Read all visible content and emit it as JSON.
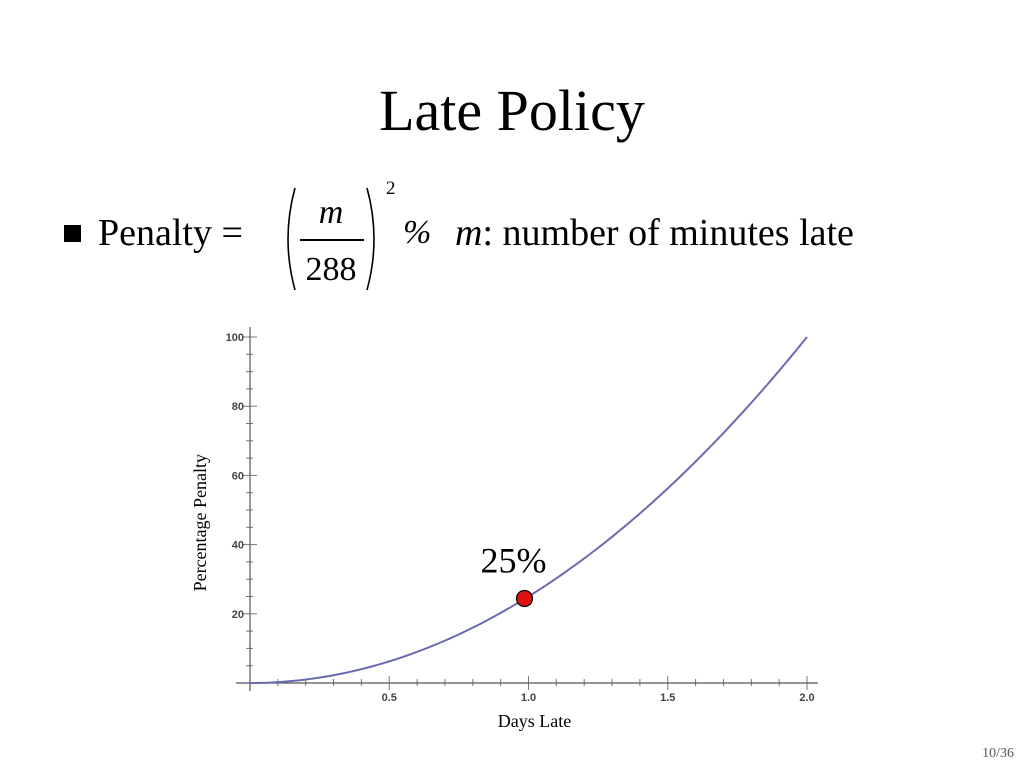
{
  "slide": {
    "title": "Late Policy",
    "page_number": "10/36"
  },
  "bullet": {
    "label": "Penalty =",
    "numerator": "m",
    "denominator": "288",
    "exponent": "2",
    "percent": "%",
    "var_name": "m",
    "description": ": number of minutes late"
  },
  "chart_data": {
    "type": "line",
    "title": "",
    "xlabel": "Days Late",
    "ylabel": "Percentage Penalty",
    "xlim": [
      0,
      2.0
    ],
    "ylim": [
      0,
      100
    ],
    "x_ticks": [
      "0.5",
      "1.0",
      "1.5",
      "2.0"
    ],
    "y_ticks": [
      "20",
      "40",
      "60",
      "80",
      "100"
    ],
    "series": [
      {
        "function": "y = 25 * x^2",
        "color": "#6a6ab0",
        "x": [
          0,
          0.25,
          0.5,
          0.75,
          1.0,
          1.25,
          1.5,
          1.75,
          2.0
        ],
        "y": [
          0,
          1.5625,
          6.25,
          14.0625,
          25,
          39.0625,
          56.25,
          76.5625,
          100
        ]
      }
    ],
    "highlight_point": {
      "x": 1.0,
      "y": 25,
      "label": "25%",
      "color": "#e01010"
    }
  }
}
